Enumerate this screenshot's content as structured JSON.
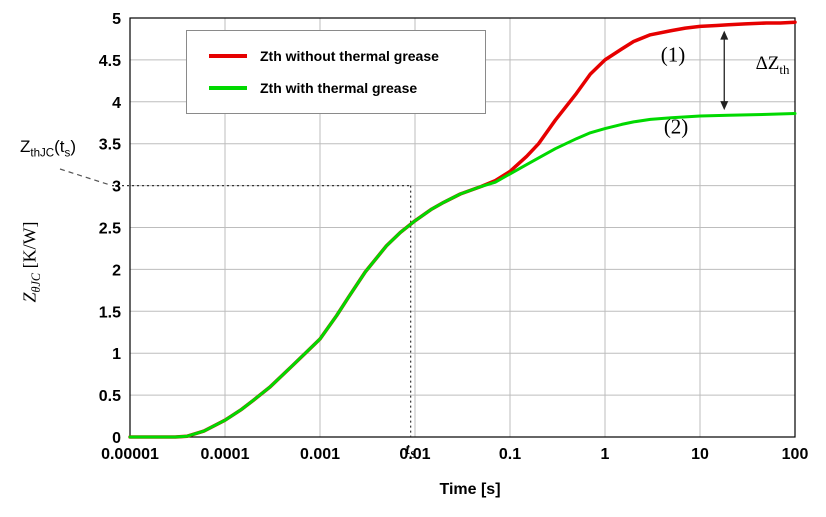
{
  "chart_data": {
    "type": "line",
    "xlabel": "Time  [s]",
    "ylabel_parts": {
      "main": "Z",
      "sub": "θJC",
      "units": "  [K/W]"
    },
    "x_scale": "log",
    "xlim": [
      1e-05,
      100
    ],
    "ylim": [
      0,
      5
    ],
    "grid": true,
    "legend_position": "top-left",
    "x_ticks": {
      "values": [
        1e-05,
        0.0001,
        0.001,
        0.01,
        0.1,
        1,
        10,
        100
      ],
      "labels": [
        "0.00001",
        "0.0001",
        "0.001",
        "0.01",
        "0.1",
        "1",
        "10",
        "100"
      ]
    },
    "y_ticks": {
      "values": [
        0,
        0.5,
        1,
        1.5,
        2,
        2.5,
        3,
        3.5,
        4,
        4.5,
        5
      ],
      "labels": [
        "0",
        "0.5",
        "1",
        "1.5",
        "2",
        "2.5",
        "3",
        "3.5",
        "4",
        "4.5",
        "5"
      ]
    },
    "series": [
      {
        "name": "Zth without thermal grease",
        "color": "#e60000",
        "points": [
          [
            1e-05,
            0
          ],
          [
            3e-05,
            0
          ],
          [
            4e-05,
            0.01
          ],
          [
            6e-05,
            0.07
          ],
          [
            0.0001,
            0.2
          ],
          [
            0.00015,
            0.33
          ],
          [
            0.0002,
            0.44
          ],
          [
            0.0003,
            0.6
          ],
          [
            0.0005,
            0.84
          ],
          [
            0.0007,
            1.0
          ],
          [
            0.001,
            1.17
          ],
          [
            0.0015,
            1.45
          ],
          [
            0.002,
            1.67
          ],
          [
            0.003,
            1.97
          ],
          [
            0.005,
            2.28
          ],
          [
            0.007,
            2.44
          ],
          [
            0.01,
            2.58
          ],
          [
            0.015,
            2.72
          ],
          [
            0.02,
            2.8
          ],
          [
            0.03,
            2.9
          ],
          [
            0.05,
            2.99
          ],
          [
            0.07,
            3.06
          ],
          [
            0.1,
            3.17
          ],
          [
            0.15,
            3.35
          ],
          [
            0.2,
            3.5
          ],
          [
            0.3,
            3.78
          ],
          [
            0.5,
            4.1
          ],
          [
            0.7,
            4.33
          ],
          [
            1,
            4.5
          ],
          [
            1.5,
            4.63
          ],
          [
            2,
            4.72
          ],
          [
            3,
            4.8
          ],
          [
            5,
            4.85
          ],
          [
            7,
            4.88
          ],
          [
            10,
            4.9
          ],
          [
            15,
            4.91
          ],
          [
            20,
            4.92
          ],
          [
            30,
            4.93
          ],
          [
            50,
            4.94
          ],
          [
            70,
            4.94
          ],
          [
            100,
            4.95
          ]
        ]
      },
      {
        "name": "Zth with thermal grease",
        "color": "#00d900",
        "points": [
          [
            1e-05,
            0
          ],
          [
            3e-05,
            0
          ],
          [
            4e-05,
            0.01
          ],
          [
            6e-05,
            0.07
          ],
          [
            0.0001,
            0.2
          ],
          [
            0.00015,
            0.33
          ],
          [
            0.0002,
            0.44
          ],
          [
            0.0003,
            0.6
          ],
          [
            0.0005,
            0.84
          ],
          [
            0.0007,
            1.0
          ],
          [
            0.001,
            1.17
          ],
          [
            0.0015,
            1.45
          ],
          [
            0.002,
            1.67
          ],
          [
            0.003,
            1.97
          ],
          [
            0.005,
            2.28
          ],
          [
            0.007,
            2.44
          ],
          [
            0.01,
            2.58
          ],
          [
            0.015,
            2.72
          ],
          [
            0.02,
            2.8
          ],
          [
            0.03,
            2.9
          ],
          [
            0.05,
            2.99
          ],
          [
            0.07,
            3.04
          ],
          [
            0.1,
            3.14
          ],
          [
            0.15,
            3.25
          ],
          [
            0.2,
            3.33
          ],
          [
            0.3,
            3.44
          ],
          [
            0.5,
            3.56
          ],
          [
            0.7,
            3.63
          ],
          [
            1,
            3.68
          ],
          [
            1.5,
            3.73
          ],
          [
            2,
            3.76
          ],
          [
            3,
            3.79
          ],
          [
            5,
            3.81
          ],
          [
            10,
            3.83
          ],
          [
            20,
            3.84
          ],
          [
            50,
            3.85
          ],
          [
            100,
            3.86
          ]
        ]
      }
    ],
    "reference": {
      "z": 3,
      "t_s": 0.009,
      "ts_label_parts": {
        "p1": "t",
        "p2": "S"
      }
    },
    "annotations": {
      "label1": {
        "text": "(1)",
        "t": 5.2,
        "z": 4.56
      },
      "label2": {
        "text": "(2)",
        "t": 5.6,
        "z": 3.7
      },
      "delta": {
        "p1": "ΔZ",
        "p2": "th",
        "t": 58,
        "z": 4.45
      },
      "callout": {
        "p1": "Z",
        "p2": "thJC",
        "p3": "(t",
        "p4": "s",
        "p5": ")"
      }
    },
    "delta_arrow": {
      "t": 18,
      "z_top": 4.85,
      "z_bottom": 3.9
    }
  }
}
